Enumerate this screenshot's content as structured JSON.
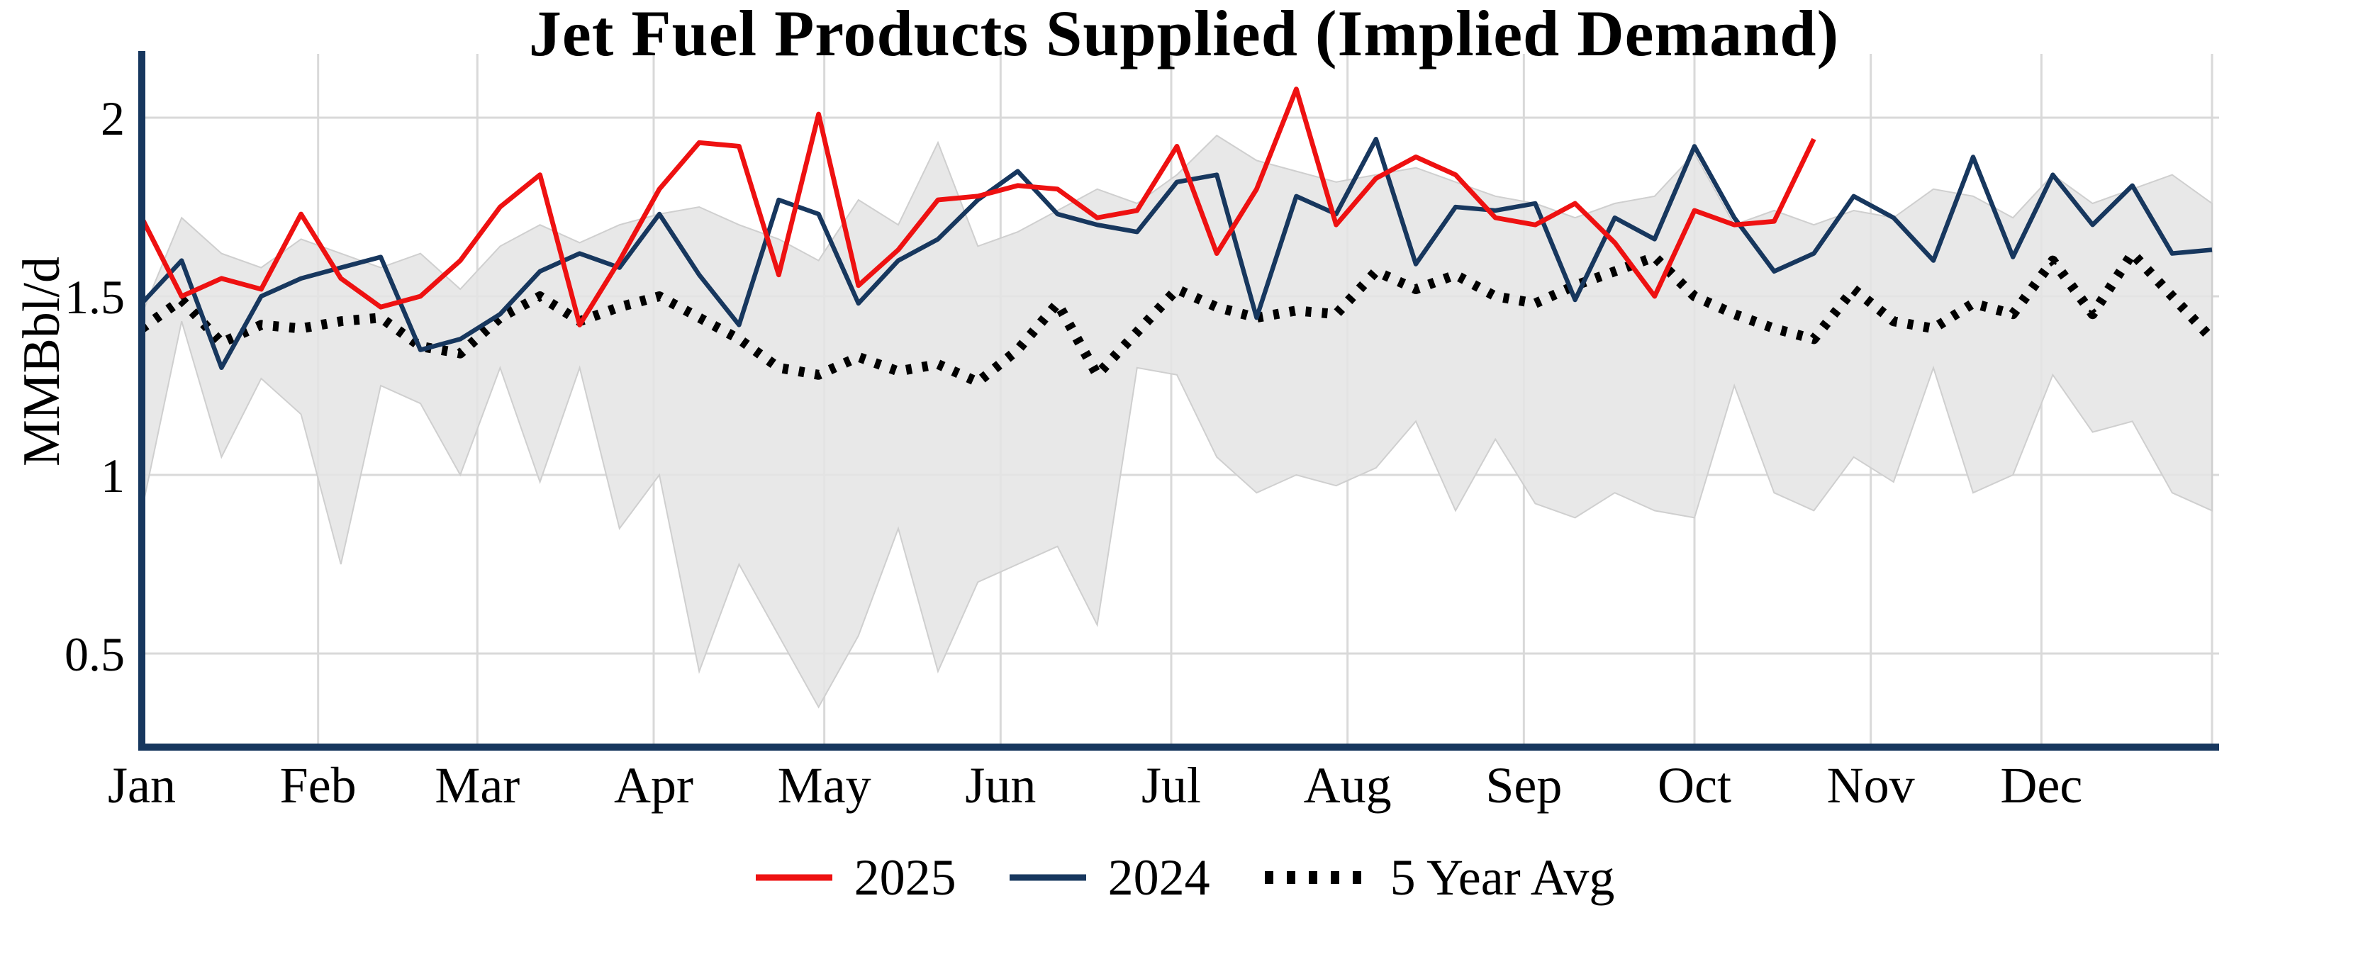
{
  "chart_data": {
    "type": "line",
    "title": "Jet Fuel Products Supplied (Implied Demand)",
    "ylabel": "MMBbl/d",
    "x_unit": "week",
    "grid": true,
    "legend_position": "bottom",
    "months": [
      "Jan",
      "Feb",
      "Mar",
      "Apr",
      "May",
      "Jun",
      "Jul",
      "Aug",
      "Sep",
      "Oct",
      "Nov",
      "Dec"
    ],
    "month_start_days": [
      0,
      31,
      59,
      90,
      120,
      151,
      181,
      212,
      243,
      273,
      304,
      334
    ],
    "ytick_values": [
      0.5,
      1,
      1.5,
      2
    ],
    "ytick_labels": [
      "0.5",
      "1",
      "1.5",
      "2"
    ],
    "ylim": [
      0.24,
      2.14
    ],
    "colors": {
      "grid": "#d9d9d9",
      "axis": "#17375e",
      "red": "#ee1111",
      "navy": "#17375e",
      "avg": "#000000",
      "band_fill": "#e4e4e4",
      "band_edge": "#cfcfcf"
    },
    "series": [
      {
        "name": "2025",
        "color": "#ee1111",
        "style": "solid",
        "values": [
          1.72,
          1.5,
          1.55,
          1.52,
          1.73,
          1.55,
          1.47,
          1.5,
          1.6,
          1.75,
          1.84,
          1.42,
          1.6,
          1.8,
          1.93,
          1.92,
          1.56,
          2.01,
          1.53,
          1.63,
          1.77,
          1.78,
          1.81,
          1.8,
          1.72,
          1.74,
          1.92,
          1.62,
          1.8,
          2.08,
          1.7,
          1.83,
          1.89,
          1.84,
          1.72,
          1.7,
          1.76,
          1.65,
          1.5,
          1.74,
          1.7,
          1.71,
          1.94
        ]
      },
      {
        "name": "2024",
        "color": "#17375e",
        "style": "solid",
        "values": [
          1.48,
          1.6,
          1.3,
          1.5,
          1.55,
          1.58,
          1.61,
          1.35,
          1.38,
          1.45,
          1.57,
          1.62,
          1.58,
          1.73,
          1.56,
          1.42,
          1.77,
          1.73,
          1.48,
          1.6,
          1.66,
          1.77,
          1.85,
          1.73,
          1.7,
          1.68,
          1.82,
          1.84,
          1.44,
          1.78,
          1.73,
          1.94,
          1.59,
          1.75,
          1.74,
          1.76,
          1.49,
          1.72,
          1.66,
          1.92,
          1.72,
          1.57,
          1.62,
          1.78,
          1.72,
          1.6,
          1.89,
          1.61,
          1.84,
          1.7,
          1.81,
          1.62,
          1.63
        ]
      },
      {
        "name": "5 Year Avg",
        "color": "#000000",
        "style": "dotted",
        "values": [
          1.41,
          1.49,
          1.37,
          1.42,
          1.41,
          1.43,
          1.44,
          1.36,
          1.34,
          1.44,
          1.5,
          1.43,
          1.47,
          1.5,
          1.44,
          1.38,
          1.3,
          1.28,
          1.33,
          1.29,
          1.31,
          1.26,
          1.35,
          1.48,
          1.28,
          1.4,
          1.52,
          1.47,
          1.44,
          1.46,
          1.45,
          1.57,
          1.52,
          1.56,
          1.5,
          1.48,
          1.53,
          1.57,
          1.61,
          1.5,
          1.45,
          1.41,
          1.38,
          1.52,
          1.43,
          1.41,
          1.48,
          1.45,
          1.6,
          1.45,
          1.62,
          1.5,
          1.38
        ]
      }
    ],
    "band": {
      "name": "5-year range",
      "fill": "#e4e4e4",
      "edge": "#cfcfcf",
      "min": [
        0.9,
        1.43,
        1.05,
        1.27,
        1.17,
        0.75,
        1.25,
        1.2,
        1.0,
        1.3,
        0.98,
        1.3,
        0.85,
        1.0,
        0.45,
        0.75,
        0.55,
        0.35,
        0.55,
        0.85,
        0.45,
        0.7,
        0.75,
        0.8,
        0.58,
        1.3,
        1.28,
        1.05,
        0.95,
        1.0,
        0.97,
        1.02,
        1.15,
        0.9,
        1.1,
        0.92,
        0.88,
        0.95,
        0.9,
        0.88,
        1.25,
        0.95,
        0.9,
        1.05,
        0.98,
        1.3,
        0.95,
        1.0,
        1.28,
        1.12,
        1.15,
        0.95,
        0.9
      ],
      "max": [
        1.45,
        1.72,
        1.62,
        1.58,
        1.66,
        1.62,
        1.58,
        1.62,
        1.52,
        1.64,
        1.7,
        1.65,
        1.7,
        1.73,
        1.75,
        1.7,
        1.66,
        1.6,
        1.77,
        1.7,
        1.93,
        1.64,
        1.68,
        1.74,
        1.8,
        1.76,
        1.84,
        1.95,
        1.88,
        1.85,
        1.82,
        1.84,
        1.86,
        1.82,
        1.78,
        1.76,
        1.72,
        1.76,
        1.78,
        1.9,
        1.7,
        1.74,
        1.7,
        1.74,
        1.72,
        1.8,
        1.78,
        1.72,
        1.84,
        1.76,
        1.8,
        1.84,
        1.76
      ]
    }
  }
}
